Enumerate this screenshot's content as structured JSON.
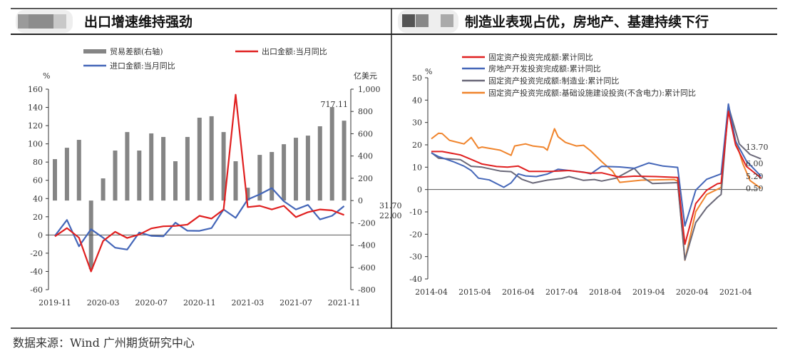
{
  "source_note": "数据来源：Wind  广州期货研究中心",
  "colors": {
    "bar": "#858585",
    "red": "#e02020",
    "blue": "#4466b8",
    "gray": "#6a6878",
    "orange": "#f0842c"
  },
  "chart_data": [
    {
      "type": "bar+line",
      "title": "出口增速维持强劲",
      "ylabel_left": "%",
      "ylabel_right": "亿美元",
      "ylim_left": [
        -60,
        160
      ],
      "ylim_right": [
        -800,
        1000
      ],
      "yticks_left": [
        "160",
        "140",
        "120",
        "100",
        "80",
        "60",
        "40",
        "20",
        "0",
        "-20",
        "-40",
        "-60"
      ],
      "yticks_right": [
        "1,000",
        "800",
        "600",
        "400",
        "200",
        "0",
        "-200",
        "-400",
        "-600",
        "-800"
      ],
      "x": [
        "2019-11",
        "2019-12",
        "2020-01",
        "2020-02",
        "2020-03",
        "2020-04",
        "2020-05",
        "2020-06",
        "2020-07",
        "2020-08",
        "2020-09",
        "2020-10",
        "2020-11",
        "2020-12",
        "2021-01",
        "2021-02",
        "2021-03",
        "2021-04",
        "2021-05",
        "2021-06",
        "2021-07",
        "2021-08",
        "2021-09",
        "2021-10",
        "2021-11"
      ],
      "xtick_labels": [
        "2019-11",
        "2020-03",
        "2020-07",
        "2020-11",
        "2021-03",
        "2021-07",
        "2021-11"
      ],
      "series": [
        {
          "name": "贸易差额(右轴)",
          "type": "bar",
          "axis": "right",
          "values": [
            372,
            474,
            545,
            -615,
            199,
            449,
            615,
            449,
            603,
            571,
            353,
            571,
            744,
            757,
            615,
            353,
            115,
            410,
            436,
            506,
            564,
            583,
            667,
            840,
            717.11
          ]
        },
        {
          "name": "出口金额:当月同比",
          "type": "line",
          "axis": "left",
          "values": [
            -1.5,
            7.6,
            -3,
            -40,
            -6.6,
            3.5,
            -3.3,
            0.5,
            7.2,
            9.5,
            9.9,
            11.4,
            21,
            18,
            28,
            154,
            30.6,
            32,
            28,
            32,
            19.6,
            25,
            28,
            27,
            22
          ]
        },
        {
          "name": "进口金额:当月同比",
          "type": "line",
          "axis": "left",
          "values": [
            -1,
            16.5,
            -12.5,
            6.3,
            -3,
            -14,
            -16,
            2.7,
            -1,
            -1.5,
            13.5,
            4.7,
            4.5,
            7.6,
            28,
            18.8,
            39,
            44.6,
            51.5,
            37,
            28,
            33,
            17,
            21,
            31.7
          ]
        }
      ],
      "annotations": [
        "717.11",
        "31.70",
        "22.00"
      ]
    },
    {
      "type": "line",
      "title": "制造业表现占优，房地产、基建持续下行",
      "ylabel": "%",
      "ylim": [
        -40,
        50
      ],
      "yticks": [
        "50",
        "40",
        "30",
        "20",
        "10",
        "0",
        "-10",
        "-20",
        "-30",
        "-40"
      ],
      "xtick_labels": [
        "2014-04",
        "2015-04",
        "2016-04",
        "2017-04",
        "2018-04",
        "2019-04",
        "2020-04",
        "2021-04"
      ],
      "series": [
        {
          "name": "固定资产投资完成额:累计同比",
          "points": [
            [
              "2014-04",
              17
            ],
            [
              "2014-07",
              17
            ],
            [
              "2014-12",
              15.5
            ],
            [
              "2015-03",
              13.5
            ],
            [
              "2015-06",
              11.4
            ],
            [
              "2015-10",
              10.3
            ],
            [
              "2016-01",
              10
            ],
            [
              "2016-04",
              10.5
            ],
            [
              "2016-07",
              8.1
            ],
            [
              "2017-01",
              8.1
            ],
            [
              "2017-06",
              8.5
            ],
            [
              "2017-12",
              7.3
            ],
            [
              "2018-03",
              7.5
            ],
            [
              "2018-08",
              5.5
            ],
            [
              "2018-12",
              6.0
            ],
            [
              "2019-06",
              5.8
            ],
            [
              "2019-12",
              5.4
            ],
            [
              "2020-02",
              -24.5
            ],
            [
              "2020-05",
              -6.3
            ],
            [
              "2020-08",
              -0.3
            ],
            [
              "2020-11",
              2.6
            ],
            [
              "2020-12",
              2.9
            ],
            [
              "2021-02",
              35
            ],
            [
              "2021-04",
              19.9
            ],
            [
              "2021-07",
              10.3
            ],
            [
              "2021-11",
              5.2
            ]
          ]
        },
        {
          "name": "房地产开发投资完成额:累计同比",
          "points": [
            [
              "2014-04",
              16.4
            ],
            [
              "2014-06",
              14.7
            ],
            [
              "2014-10",
              12.5
            ],
            [
              "2015-01",
              10.5
            ],
            [
              "2015-03",
              8.5
            ],
            [
              "2015-05",
              5.1
            ],
            [
              "2015-08",
              4.3
            ],
            [
              "2015-12",
              1.0
            ],
            [
              "2016-02",
              3
            ],
            [
              "2016-04",
              7
            ],
            [
              "2016-06",
              6.1
            ],
            [
              "2016-09",
              5.8
            ],
            [
              "2016-12",
              6.9
            ],
            [
              "2017-03",
              9.1
            ],
            [
              "2017-06",
              8.5
            ],
            [
              "2017-10",
              7.8
            ],
            [
              "2017-12",
              7.0
            ],
            [
              "2018-03",
              10.4
            ],
            [
              "2018-08",
              10.1
            ],
            [
              "2018-12",
              9.5
            ],
            [
              "2019-04",
              11.9
            ],
            [
              "2019-08",
              10.5
            ],
            [
              "2019-12",
              9.9
            ],
            [
              "2020-02",
              -16.3
            ],
            [
              "2020-05",
              -0.3
            ],
            [
              "2020-08",
              4.6
            ],
            [
              "2020-12",
              7.0
            ],
            [
              "2021-02",
              38.3
            ],
            [
              "2021-04",
              21.6
            ],
            [
              "2021-07",
              12.7
            ],
            [
              "2021-11",
              6.0
            ]
          ]
        },
        {
          "name": "固定资产投资完成额:制造业:累计同比",
          "points": [
            [
              "2014-04",
              16.5
            ],
            [
              "2014-06",
              14
            ],
            [
              "2014-12",
              13.4
            ],
            [
              "2015-03",
              10.4
            ],
            [
              "2015-06",
              10
            ],
            [
              "2015-11",
              8.3
            ],
            [
              "2016-02",
              8
            ],
            [
              "2016-05",
              4.6
            ],
            [
              "2016-08",
              2.9
            ],
            [
              "2016-12",
              4.2
            ],
            [
              "2017-04",
              5
            ],
            [
              "2017-06",
              5.8
            ],
            [
              "2017-10",
              4.1
            ],
            [
              "2018-01",
              4.5
            ],
            [
              "2018-03",
              3.8
            ],
            [
              "2018-07",
              5.1
            ],
            [
              "2018-12",
              9.5
            ],
            [
              "2019-02",
              5.9
            ],
            [
              "2019-05",
              2.7
            ],
            [
              "2019-12",
              3.1
            ],
            [
              "2020-02",
              -31.5
            ],
            [
              "2020-05",
              -14.8
            ],
            [
              "2020-08",
              -8.1
            ],
            [
              "2020-11",
              -3.5
            ],
            [
              "2020-12",
              -2.2
            ],
            [
              "2021-02",
              37.3
            ],
            [
              "2021-05",
              20.4
            ],
            [
              "2021-08",
              15.7
            ],
            [
              "2021-11",
              13.7
            ]
          ]
        },
        {
          "name": "固定资产投资完成额:基础设施建设投资(不含电力):累计同比",
          "points": [
            [
              "2014-04",
              22.7
            ],
            [
              "2014-06",
              25.2
            ],
            [
              "2014-07",
              25
            ],
            [
              "2014-09",
              22
            ],
            [
              "2015-01",
              20.4
            ],
            [
              "2015-03",
              23.3
            ],
            [
              "2015-05",
              18.5
            ],
            [
              "2015-06",
              19
            ],
            [
              "2015-11",
              17.6
            ],
            [
              "2016-02",
              15.3
            ],
            [
              "2016-03",
              19.5
            ],
            [
              "2016-06",
              20.4
            ],
            [
              "2016-08",
              19.5
            ],
            [
              "2016-11",
              18.9
            ],
            [
              "2016-12",
              17.6
            ],
            [
              "2017-02",
              27.2
            ],
            [
              "2017-03",
              23.6
            ],
            [
              "2017-05",
              21.1
            ],
            [
              "2017-08",
              19.5
            ],
            [
              "2017-10",
              19.8
            ],
            [
              "2017-12",
              17.3
            ],
            [
              "2018-03",
              12.5
            ],
            [
              "2018-06",
              8.3
            ],
            [
              "2018-08",
              3.2
            ],
            [
              "2019-02",
              4.2
            ],
            [
              "2019-11",
              4.5
            ],
            [
              "2019-12",
              3.8
            ],
            [
              "2020-02",
              -31.6
            ],
            [
              "2020-05",
              -9.9
            ],
            [
              "2020-08",
              -2.2
            ],
            [
              "2020-12",
              0.9
            ],
            [
              "2021-02",
              36.6
            ],
            [
              "2021-04",
              22
            ],
            [
              "2021-06",
              11.5
            ],
            [
              "2021-08",
              4
            ],
            [
              "2021-11",
              0.5
            ]
          ]
        }
      ],
      "end_labels": [
        "13.70",
        "6.00",
        "5.20",
        "0.50"
      ]
    }
  ]
}
